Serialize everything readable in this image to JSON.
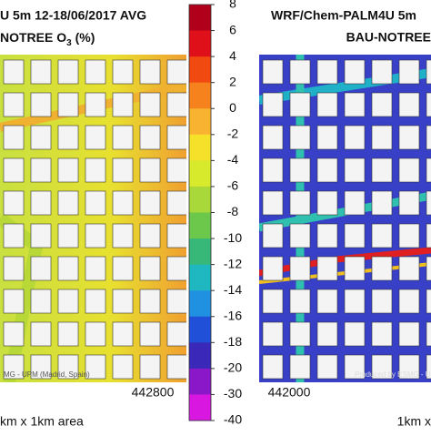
{
  "left_panel": {
    "title_line1": "U 5m 12-18/06/2017 AVG",
    "title_line2": "NOTREE O",
    "title_line2_sub": "3",
    "title_line2_end": " (%)",
    "x_tick": "442800",
    "credit": "MG - UPM (Madrid, Spain)",
    "caption": "km x 1km area"
  },
  "right_panel": {
    "title_line1": "WRF/Chem-PALM4U 5m",
    "title_line2": "BAU-NOTREE",
    "x_tick": "442000",
    "credit": "Produced by ESMG - UPM",
    "caption": "1km x"
  },
  "colorbar": {
    "ticks": [
      8,
      6,
      4,
      2,
      0,
      -2,
      -4,
      -6,
      -8,
      -10,
      -12,
      -14,
      -16,
      -18,
      -20,
      -30,
      -40
    ],
    "colors": [
      "#b0001a",
      "#e0101a",
      "#f04a10",
      "#f5821c",
      "#f8b430",
      "#f5e02a",
      "#d8ea2c",
      "#a8d83a",
      "#6cc84a",
      "#38b878",
      "#20b8c0",
      "#2090e0",
      "#2050d8",
      "#3a28b8",
      "#8a18c8",
      "#d818e0"
    ]
  }
}
